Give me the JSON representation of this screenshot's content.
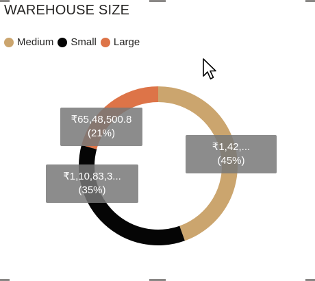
{
  "chart_data": {
    "type": "pie",
    "title": "WAREHOUSE SIZE",
    "legend_position": "top-left",
    "categories": [
      "Medium",
      "Small",
      "Large"
    ],
    "colors": [
      "#cba56e",
      "#050505",
      "#dd7448"
    ],
    "values": [
      0.45,
      0.35,
      0.21
    ],
    "data_labels": [
      {
        "value": "₹1,42,...",
        "percent": "(45%)"
      },
      {
        "value": "₹1,10,83,3...",
        "percent": "(35%)"
      },
      {
        "value": "₹65,48,500.8",
        "percent": "(21%)"
      }
    ]
  },
  "icons": {
    "pointer": "mouse-pointer-icon"
  }
}
